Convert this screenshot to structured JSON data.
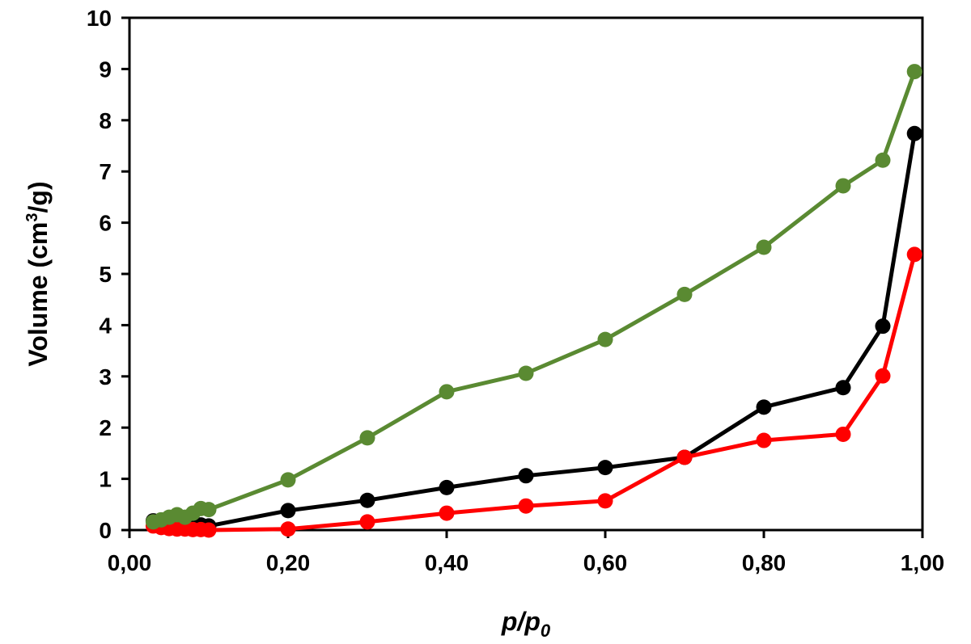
{
  "chart_data": {
    "type": "line",
    "xlabel": "p/p",
    "xlabel_sub": "0",
    "ylabel": "Volume (cm",
    "ylabel_sup": "3",
    "ylabel_end": "/g)",
    "xlim": [
      0,
      1
    ],
    "ylim": [
      0,
      10
    ],
    "x_ticks": [
      0,
      0.2,
      0.4,
      0.6,
      0.8,
      1.0
    ],
    "x_tick_labels": [
      "0,00",
      "0,20",
      "0,40",
      "0,60",
      "0,80",
      "1,00"
    ],
    "y_ticks": [
      0,
      1,
      2,
      3,
      4,
      5,
      6,
      7,
      8,
      9,
      10
    ],
    "y_tick_labels": [
      "0",
      "1",
      "2",
      "3",
      "4",
      "5",
      "6",
      "7",
      "8",
      "9",
      "10"
    ],
    "grid": false,
    "legend": "none",
    "series": [
      {
        "color": "#000000",
        "x": [
          0.03,
          0.04,
          0.05,
          0.06,
          0.07,
          0.08,
          0.09,
          0.1,
          0.2,
          0.3,
          0.4,
          0.5,
          0.6,
          0.7,
          0.8,
          0.9,
          0.95,
          0.99
        ],
        "y": [
          0.18,
          0.16,
          0.15,
          0.14,
          0.13,
          0.12,
          0.1,
          0.08,
          0.38,
          0.58,
          0.83,
          1.06,
          1.22,
          1.42,
          2.4,
          2.78,
          3.98,
          7.74
        ]
      },
      {
        "color": "#ff0000",
        "x": [
          0.03,
          0.04,
          0.05,
          0.06,
          0.07,
          0.08,
          0.09,
          0.1,
          0.2,
          0.3,
          0.4,
          0.5,
          0.6,
          0.7,
          0.8,
          0.9,
          0.95,
          0.99
        ],
        "y": [
          0.08,
          0.05,
          0.03,
          0.02,
          0.02,
          0.01,
          0.01,
          0.0,
          0.02,
          0.16,
          0.33,
          0.47,
          0.57,
          1.42,
          1.75,
          1.87,
          3.01,
          5.38
        ]
      },
      {
        "color": "#5a8a32",
        "x": [
          0.03,
          0.04,
          0.05,
          0.06,
          0.07,
          0.08,
          0.09,
          0.1,
          0.2,
          0.3,
          0.4,
          0.5,
          0.6,
          0.7,
          0.8,
          0.9,
          0.95,
          0.99
        ],
        "y": [
          0.16,
          0.2,
          0.25,
          0.3,
          0.25,
          0.33,
          0.42,
          0.4,
          0.98,
          1.8,
          2.7,
          3.06,
          3.72,
          4.6,
          5.52,
          6.72,
          7.22,
          8.95
        ]
      }
    ]
  }
}
